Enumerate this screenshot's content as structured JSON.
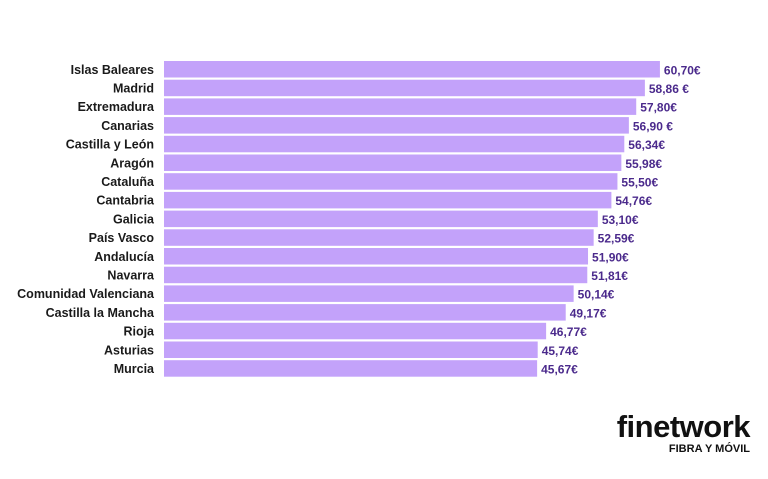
{
  "chart_data": {
    "type": "bar",
    "orientation": "horizontal",
    "categories": [
      "Islas Baleares",
      "Madrid",
      "Extremadura",
      "Canarias",
      "Castilla y León",
      "Aragón",
      "Cataluña",
      "Cantabria",
      "Galicia",
      "País Vasco",
      "Andalucía",
      "Navarra",
      "Comunidad Valenciana",
      "Castilla la Mancha",
      "Rioja",
      "Asturias",
      "Murcia"
    ],
    "values": [
      60.7,
      58.86,
      57.8,
      56.9,
      56.34,
      55.98,
      55.5,
      54.76,
      53.1,
      52.59,
      51.9,
      51.81,
      50.14,
      49.17,
      46.77,
      45.74,
      45.67
    ],
    "data_labels": [
      "60,70€",
      "58,86 €",
      "57,80€",
      "56,90 €",
      "56,34€",
      "55,98€",
      "55,50€",
      "54,76€",
      "53,10€",
      "52,59€",
      "51,90€",
      "51,81€",
      "50,14€",
      "49,17€",
      "46,77€",
      "45,74€",
      "45,67€"
    ],
    "unit": "€",
    "grid": false,
    "legend": "none",
    "colors": {
      "bar": "#c3a2fa",
      "label": "#4b2a8c",
      "category": "#1a1a1a"
    }
  },
  "logo": {
    "name": "finetwork",
    "tagline": "FIBRA Y MÓVIL"
  }
}
